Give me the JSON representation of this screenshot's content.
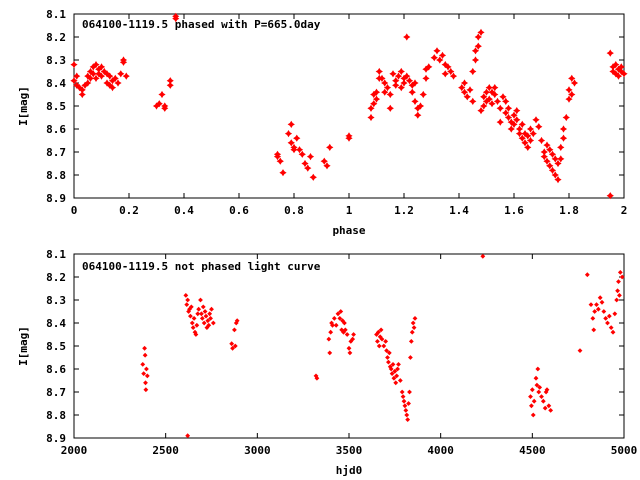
{
  "chart_data": [
    {
      "type": "scatter",
      "title": "064100-1119.5 phased with P=665.0day",
      "xlabel": "phase",
      "ylabel": "I[mag]",
      "xlim": [
        0,
        2
      ],
      "ylim": [
        8.1,
        8.9
      ],
      "y_inverted": true,
      "marker": "star",
      "color": "#ff0000",
      "xticks": [
        "0",
        "0.2",
        "0.4",
        "0.6",
        "0.8",
        "1",
        "1.2",
        "1.4",
        "1.6",
        "1.8",
        "2"
      ],
      "yticks": [
        "8.1",
        "8.2",
        "8.3",
        "8.4",
        "8.5",
        "8.6",
        "8.7",
        "8.8",
        "8.9"
      ],
      "points": [
        [
          0.0,
          8.32
        ],
        [
          0.0,
          8.39
        ],
        [
          0.01,
          8.37
        ],
        [
          0.01,
          8.41
        ],
        [
          0.02,
          8.42
        ],
        [
          0.03,
          8.45
        ],
        [
          0.03,
          8.43
        ],
        [
          0.04,
          8.41
        ],
        [
          0.05,
          8.37
        ],
        [
          0.05,
          8.4
        ],
        [
          0.06,
          8.35
        ],
        [
          0.06,
          8.38
        ],
        [
          0.07,
          8.33
        ],
        [
          0.07,
          8.36
        ],
        [
          0.08,
          8.32
        ],
        [
          0.08,
          8.38
        ],
        [
          0.09,
          8.34
        ],
        [
          0.09,
          8.36
        ],
        [
          0.1,
          8.33
        ],
        [
          0.1,
          8.37
        ],
        [
          0.11,
          8.35
        ],
        [
          0.12,
          8.36
        ],
        [
          0.12,
          8.4
        ],
        [
          0.13,
          8.37
        ],
        [
          0.13,
          8.41
        ],
        [
          0.14,
          8.39
        ],
        [
          0.14,
          8.42
        ],
        [
          0.15,
          8.38
        ],
        [
          0.16,
          8.4
        ],
        [
          0.17,
          8.36
        ],
        [
          0.18,
          8.31
        ],
        [
          0.18,
          8.3
        ],
        [
          0.19,
          8.37
        ],
        [
          0.3,
          8.5
        ],
        [
          0.31,
          8.49
        ],
        [
          0.32,
          8.45
        ],
        [
          0.33,
          8.51
        ],
        [
          0.33,
          8.5
        ],
        [
          0.35,
          8.39
        ],
        [
          0.35,
          8.41
        ],
        [
          0.37,
          8.11
        ],
        [
          0.37,
          8.12
        ],
        [
          0.74,
          8.71
        ],
        [
          0.74,
          8.72
        ],
        [
          0.75,
          8.74
        ],
        [
          0.76,
          8.79
        ],
        [
          0.78,
          8.62
        ],
        [
          0.79,
          8.58
        ],
        [
          0.79,
          8.66
        ],
        [
          0.8,
          8.69
        ],
        [
          0.8,
          8.68
        ],
        [
          0.81,
          8.64
        ],
        [
          0.82,
          8.69
        ],
        [
          0.83,
          8.71
        ],
        [
          0.84,
          8.75
        ],
        [
          0.85,
          8.77
        ],
        [
          0.86,
          8.72
        ],
        [
          0.87,
          8.81
        ],
        [
          0.91,
          8.74
        ],
        [
          0.92,
          8.76
        ],
        [
          0.93,
          8.68
        ],
        [
          1.0,
          8.63
        ],
        [
          1.0,
          8.64
        ],
        [
          1.08,
          8.51
        ],
        [
          1.08,
          8.55
        ],
        [
          1.09,
          8.45
        ],
        [
          1.09,
          8.49
        ],
        [
          1.1,
          8.44
        ],
        [
          1.1,
          8.47
        ],
        [
          1.11,
          8.35
        ],
        [
          1.11,
          8.38
        ],
        [
          1.12,
          8.38
        ],
        [
          1.13,
          8.4
        ],
        [
          1.13,
          8.44
        ],
        [
          1.14,
          8.42
        ],
        [
          1.15,
          8.45
        ],
        [
          1.15,
          8.51
        ],
        [
          1.16,
          8.36
        ],
        [
          1.17,
          8.39
        ],
        [
          1.17,
          8.41
        ],
        [
          1.18,
          8.37
        ],
        [
          1.19,
          8.42
        ],
        [
          1.19,
          8.35
        ],
        [
          1.2,
          8.38
        ],
        [
          1.2,
          8.4
        ],
        [
          1.21,
          8.2
        ],
        [
          1.21,
          8.37
        ],
        [
          1.22,
          8.39
        ],
        [
          1.23,
          8.41
        ],
        [
          1.23,
          8.44
        ],
        [
          1.24,
          8.4
        ],
        [
          1.24,
          8.48
        ],
        [
          1.25,
          8.54
        ],
        [
          1.25,
          8.51
        ],
        [
          1.26,
          8.5
        ],
        [
          1.27,
          8.45
        ],
        [
          1.28,
          8.34
        ],
        [
          1.28,
          8.38
        ],
        [
          1.29,
          8.33
        ],
        [
          1.31,
          8.29
        ],
        [
          1.32,
          8.26
        ],
        [
          1.33,
          8.3
        ],
        [
          1.34,
          8.28
        ],
        [
          1.35,
          8.32
        ],
        [
          1.35,
          8.36
        ],
        [
          1.36,
          8.33
        ],
        [
          1.37,
          8.35
        ],
        [
          1.38,
          8.37
        ],
        [
          1.41,
          8.42
        ],
        [
          1.42,
          8.44
        ],
        [
          1.42,
          8.4
        ],
        [
          1.43,
          8.46
        ],
        [
          1.44,
          8.43
        ],
        [
          1.45,
          8.48
        ],
        [
          1.45,
          8.35
        ],
        [
          1.46,
          8.3
        ],
        [
          1.46,
          8.26
        ],
        [
          1.47,
          8.24
        ],
        [
          1.47,
          8.2
        ],
        [
          1.48,
          8.18
        ],
        [
          1.48,
          8.52
        ],
        [
          1.49,
          8.5
        ],
        [
          1.49,
          8.46
        ],
        [
          1.5,
          8.44
        ],
        [
          1.5,
          8.48
        ],
        [
          1.51,
          8.42
        ],
        [
          1.51,
          8.47
        ],
        [
          1.52,
          8.44
        ],
        [
          1.52,
          8.49
        ],
        [
          1.53,
          8.45
        ],
        [
          1.53,
          8.42
        ],
        [
          1.54,
          8.48
        ],
        [
          1.55,
          8.51
        ],
        [
          1.55,
          8.57
        ],
        [
          1.56,
          8.46
        ],
        [
          1.57,
          8.48
        ],
        [
          1.57,
          8.53
        ],
        [
          1.58,
          8.55
        ],
        [
          1.58,
          8.51
        ],
        [
          1.59,
          8.57
        ],
        [
          1.59,
          8.6
        ],
        [
          1.6,
          8.54
        ],
        [
          1.6,
          8.58
        ],
        [
          1.61,
          8.52
        ],
        [
          1.61,
          8.56
        ],
        [
          1.62,
          8.6
        ],
        [
          1.62,
          8.62
        ],
        [
          1.63,
          8.58
        ],
        [
          1.63,
          8.64
        ],
        [
          1.64,
          8.62
        ],
        [
          1.64,
          8.66
        ],
        [
          1.65,
          8.63
        ],
        [
          1.65,
          8.68
        ],
        [
          1.66,
          8.6
        ],
        [
          1.66,
          8.65
        ],
        [
          1.67,
          8.62
        ],
        [
          1.68,
          8.56
        ],
        [
          1.69,
          8.59
        ],
        [
          1.7,
          8.65
        ],
        [
          1.71,
          8.7
        ],
        [
          1.71,
          8.72
        ],
        [
          1.72,
          8.67
        ],
        [
          1.72,
          8.74
        ],
        [
          1.73,
          8.69
        ],
        [
          1.73,
          8.76
        ],
        [
          1.74,
          8.71
        ],
        [
          1.74,
          8.78
        ],
        [
          1.75,
          8.73
        ],
        [
          1.75,
          8.8
        ],
        [
          1.76,
          8.75
        ],
        [
          1.76,
          8.82
        ],
        [
          1.77,
          8.73
        ],
        [
          1.77,
          8.68
        ],
        [
          1.78,
          8.64
        ],
        [
          1.78,
          8.6
        ],
        [
          1.79,
          8.55
        ],
        [
          1.8,
          8.47
        ],
        [
          1.8,
          8.43
        ],
        [
          1.81,
          8.38
        ],
        [
          1.81,
          8.45
        ],
        [
          1.82,
          8.4
        ],
        [
          1.95,
          8.89
        ],
        [
          1.95,
          8.27
        ],
        [
          1.96,
          8.33
        ],
        [
          1.96,
          8.35
        ],
        [
          1.97,
          8.32
        ],
        [
          1.97,
          8.36
        ],
        [
          1.98,
          8.34
        ],
        [
          1.98,
          8.37
        ],
        [
          1.99,
          8.35
        ],
        [
          1.99,
          8.33
        ],
        [
          2.0,
          8.36
        ]
      ]
    },
    {
      "type": "scatter",
      "title": "064100-1119.5 not phased light curve",
      "xlabel": "hjd0",
      "ylabel": "I[mag]",
      "xlim": [
        2000,
        5000
      ],
      "ylim": [
        8.1,
        8.9
      ],
      "y_inverted": true,
      "marker": "diamond",
      "color": "#ff0000",
      "xticks": [
        "2000",
        "2500",
        "3000",
        "3500",
        "4000",
        "4500",
        "5000"
      ],
      "yticks": [
        "8.1",
        "8.2",
        "8.3",
        "8.4",
        "8.5",
        "8.6",
        "8.7",
        "8.8",
        "8.9"
      ],
      "points": [
        [
          2375,
          8.58
        ],
        [
          2380,
          8.62
        ],
        [
          2385,
          8.51
        ],
        [
          2388,
          8.54
        ],
        [
          2390,
          8.66
        ],
        [
          2392,
          8.69
        ],
        [
          2395,
          8.6
        ],
        [
          2400,
          8.63
        ],
        [
          2620,
          8.89
        ],
        [
          2610,
          8.28
        ],
        [
          2615,
          8.32
        ],
        [
          2620,
          8.3
        ],
        [
          2625,
          8.35
        ],
        [
          2630,
          8.34
        ],
        [
          2635,
          8.37
        ],
        [
          2640,
          8.33
        ],
        [
          2645,
          8.4
        ],
        [
          2650,
          8.42
        ],
        [
          2655,
          8.38
        ],
        [
          2660,
          8.44
        ],
        [
          2665,
          8.45
        ],
        [
          2670,
          8.41
        ],
        [
          2675,
          8.36
        ],
        [
          2680,
          8.34
        ],
        [
          2690,
          8.3
        ],
        [
          2695,
          8.36
        ],
        [
          2700,
          8.38
        ],
        [
          2705,
          8.33
        ],
        [
          2710,
          8.4
        ],
        [
          2715,
          8.35
        ],
        [
          2720,
          8.37
        ],
        [
          2725,
          8.42
        ],
        [
          2730,
          8.39
        ],
        [
          2735,
          8.41
        ],
        [
          2740,
          8.36
        ],
        [
          2745,
          8.38
        ],
        [
          2750,
          8.34
        ],
        [
          2760,
          8.4
        ],
        [
          2860,
          8.49
        ],
        [
          2865,
          8.51
        ],
        [
          2875,
          8.43
        ],
        [
          2880,
          8.5
        ],
        [
          2885,
          8.4
        ],
        [
          2890,
          8.39
        ],
        [
          3320,
          8.63
        ],
        [
          3325,
          8.64
        ],
        [
          3390,
          8.47
        ],
        [
          3395,
          8.53
        ],
        [
          3400,
          8.44
        ],
        [
          3405,
          8.4
        ],
        [
          3410,
          8.41
        ],
        [
          3420,
          8.38
        ],
        [
          3430,
          8.41
        ],
        [
          3440,
          8.36
        ],
        [
          3450,
          8.38
        ],
        [
          3455,
          8.35
        ],
        [
          3460,
          8.43
        ],
        [
          3465,
          8.39
        ],
        [
          3470,
          8.44
        ],
        [
          3475,
          8.4
        ],
        [
          3480,
          8.43
        ],
        [
          3490,
          8.45
        ],
        [
          3500,
          8.51
        ],
        [
          3505,
          8.53
        ],
        [
          3510,
          8.48
        ],
        [
          3520,
          8.47
        ],
        [
          3525,
          8.45
        ],
        [
          3650,
          8.45
        ],
        [
          3655,
          8.48
        ],
        [
          3660,
          8.44
        ],
        [
          3665,
          8.5
        ],
        [
          3670,
          8.46
        ],
        [
          3675,
          8.43
        ],
        [
          3680,
          8.47
        ],
        [
          3690,
          8.5
        ],
        [
          3700,
          8.48
        ],
        [
          3705,
          8.52
        ],
        [
          3710,
          8.55
        ],
        [
          3715,
          8.57
        ],
        [
          3720,
          8.53
        ],
        [
          3725,
          8.59
        ],
        [
          3730,
          8.6
        ],
        [
          3735,
          8.62
        ],
        [
          3740,
          8.58
        ],
        [
          3745,
          8.64
        ],
        [
          3750,
          8.61
        ],
        [
          3755,
          8.66
        ],
        [
          3760,
          8.63
        ],
        [
          3765,
          8.6
        ],
        [
          3770,
          8.58
        ],
        [
          3780,
          8.65
        ],
        [
          3790,
          8.7
        ],
        [
          3795,
          8.72
        ],
        [
          3800,
          8.74
        ],
        [
          3805,
          8.76
        ],
        [
          3810,
          8.78
        ],
        [
          3815,
          8.8
        ],
        [
          3820,
          8.82
        ],
        [
          3825,
          8.75
        ],
        [
          3830,
          8.7
        ],
        [
          3835,
          8.55
        ],
        [
          3840,
          8.48
        ],
        [
          3845,
          8.44
        ],
        [
          3850,
          8.4
        ],
        [
          3855,
          8.42
        ],
        [
          3860,
          8.38
        ],
        [
          4230,
          8.11
        ],
        [
          4490,
          8.72
        ],
        [
          4495,
          8.76
        ],
        [
          4500,
          8.69
        ],
        [
          4505,
          8.8
        ],
        [
          4510,
          8.74
        ],
        [
          4520,
          8.64
        ],
        [
          4525,
          8.67
        ],
        [
          4530,
          8.6
        ],
        [
          4535,
          8.7
        ],
        [
          4540,
          8.68
        ],
        [
          4550,
          8.72
        ],
        [
          4560,
          8.74
        ],
        [
          4570,
          8.77
        ],
        [
          4575,
          8.7
        ],
        [
          4580,
          8.69
        ],
        [
          4590,
          8.76
        ],
        [
          4600,
          8.78
        ],
        [
          4760,
          8.52
        ],
        [
          4800,
          8.19
        ],
        [
          4820,
          8.32
        ],
        [
          4830,
          8.38
        ],
        [
          4835,
          8.43
        ],
        [
          4840,
          8.35
        ],
        [
          4850,
          8.32
        ],
        [
          4860,
          8.34
        ],
        [
          4870,
          8.29
        ],
        [
          4880,
          8.31
        ],
        [
          4890,
          8.35
        ],
        [
          4900,
          8.38
        ],
        [
          4910,
          8.4
        ],
        [
          4920,
          8.37
        ],
        [
          4930,
          8.42
        ],
        [
          4940,
          8.44
        ],
        [
          4950,
          8.36
        ],
        [
          4960,
          8.3
        ],
        [
          4965,
          8.26
        ],
        [
          4970,
          8.22
        ],
        [
          4975,
          8.28
        ],
        [
          4980,
          8.18
        ],
        [
          4990,
          8.2
        ]
      ]
    }
  ]
}
